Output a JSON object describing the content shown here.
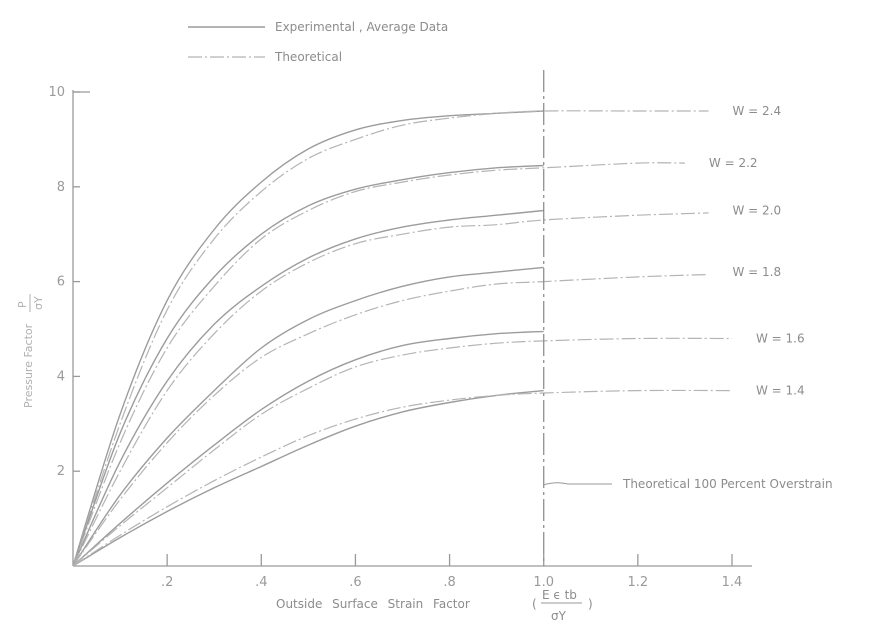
{
  "legend": {
    "experimental_label": "Experimental , Average Data",
    "theoretical_label": "Theoretical"
  },
  "annotation": {
    "overstrain_label": "Theoretical 100 Percent Overstrain"
  },
  "axes": {
    "xlabel": "Outside Surface Strain Factor",
    "xlabel_fraction_num": "E ϵ tb",
    "xlabel_fraction_den": "σY",
    "ylabel": "Pressure Factor",
    "ylabel_fraction_num": "P",
    "ylabel_fraction_den": "σY"
  },
  "chart_data": {
    "type": "line",
    "title": "",
    "xlabel": "Outside Surface Strain Factor",
    "ylabel": "Pressure Factor",
    "xlim": [
      0,
      1.4
    ],
    "ylim": [
      0,
      10
    ],
    "x_ticks": [
      ".2",
      ".4",
      ".6",
      ".8",
      "1.0",
      "1.2",
      "1.4"
    ],
    "y_ticks": [
      "2",
      "4",
      "6",
      "8",
      "10"
    ],
    "vertical_line_x": 1.0,
    "series": [
      {
        "label": "W = 2.4",
        "asymptote": 9.6,
        "experimental": {
          "x": [
            0,
            0.1,
            0.2,
            0.3,
            0.4,
            0.5,
            0.6,
            0.7,
            0.8,
            0.9,
            1.0
          ],
          "y": [
            0,
            3.2,
            5.6,
            7.1,
            8.1,
            8.8,
            9.2,
            9.4,
            9.5,
            9.55,
            9.6
          ]
        },
        "theoretical": {
          "x": [
            0,
            0.1,
            0.2,
            0.3,
            0.4,
            0.5,
            0.6,
            0.7,
            0.8,
            0.9,
            1.0,
            1.2,
            1.35
          ],
          "y": [
            0,
            3.0,
            5.4,
            6.9,
            7.9,
            8.6,
            9.0,
            9.3,
            9.45,
            9.55,
            9.6,
            9.6,
            9.6
          ]
        }
      },
      {
        "label": "W = 2.2",
        "asymptote": 8.5,
        "experimental": {
          "x": [
            0,
            0.1,
            0.2,
            0.3,
            0.4,
            0.5,
            0.6,
            0.7,
            0.8,
            0.9,
            1.0
          ],
          "y": [
            0,
            2.8,
            4.8,
            6.1,
            7.0,
            7.6,
            7.95,
            8.15,
            8.3,
            8.4,
            8.45
          ]
        },
        "theoretical": {
          "x": [
            0,
            0.1,
            0.2,
            0.3,
            0.4,
            0.5,
            0.6,
            0.7,
            0.8,
            0.9,
            1.0,
            1.2,
            1.3
          ],
          "y": [
            0,
            2.6,
            4.6,
            5.9,
            6.9,
            7.5,
            7.9,
            8.1,
            8.25,
            8.35,
            8.4,
            8.5,
            8.5
          ]
        }
      },
      {
        "label": "W = 2.0",
        "asymptote": 7.5,
        "experimental": {
          "x": [
            0,
            0.1,
            0.2,
            0.3,
            0.4,
            0.5,
            0.6,
            0.7,
            0.8,
            0.9,
            1.0
          ],
          "y": [
            0,
            2.2,
            3.9,
            5.1,
            5.9,
            6.5,
            6.9,
            7.15,
            7.3,
            7.4,
            7.5
          ]
        },
        "theoretical": {
          "x": [
            0,
            0.1,
            0.2,
            0.3,
            0.4,
            0.5,
            0.6,
            0.7,
            0.8,
            0.9,
            1.0,
            1.2,
            1.35
          ],
          "y": [
            0,
            2.0,
            3.7,
            4.9,
            5.8,
            6.4,
            6.8,
            7.0,
            7.15,
            7.2,
            7.3,
            7.4,
            7.45
          ]
        }
      },
      {
        "label": "W = 1.8",
        "asymptote": 6.2,
        "experimental": {
          "x": [
            0,
            0.1,
            0.2,
            0.3,
            0.4,
            0.5,
            0.6,
            0.7,
            0.8,
            0.9,
            1.0
          ],
          "y": [
            0,
            1.5,
            2.7,
            3.7,
            4.6,
            5.2,
            5.6,
            5.9,
            6.1,
            6.2,
            6.3
          ]
        },
        "theoretical": {
          "x": [
            0,
            0.1,
            0.2,
            0.3,
            0.4,
            0.5,
            0.6,
            0.7,
            0.8,
            0.9,
            1.0,
            1.2,
            1.35
          ],
          "y": [
            0,
            1.4,
            2.6,
            3.6,
            4.4,
            4.9,
            5.3,
            5.6,
            5.8,
            5.95,
            6.0,
            6.1,
            6.15
          ]
        }
      },
      {
        "label": "W = 1.6",
        "asymptote": 4.8,
        "experimental": {
          "x": [
            0,
            0.1,
            0.2,
            0.3,
            0.4,
            0.5,
            0.6,
            0.7,
            0.8,
            0.9,
            1.0
          ],
          "y": [
            0,
            0.9,
            1.75,
            2.55,
            3.3,
            3.9,
            4.35,
            4.65,
            4.8,
            4.9,
            4.95
          ]
        },
        "theoretical": {
          "x": [
            0,
            0.1,
            0.2,
            0.3,
            0.4,
            0.5,
            0.6,
            0.7,
            0.8,
            0.9,
            1.0,
            1.2,
            1.4
          ],
          "y": [
            0,
            0.85,
            1.65,
            2.45,
            3.2,
            3.75,
            4.2,
            4.45,
            4.6,
            4.7,
            4.75,
            4.8,
            4.8
          ]
        }
      },
      {
        "label": "W = 1.4",
        "asymptote": 3.7,
        "experimental": {
          "x": [
            0,
            0.1,
            0.2,
            0.3,
            0.4,
            0.5,
            0.6,
            0.7,
            0.8,
            0.9,
            1.0
          ],
          "y": [
            0,
            0.6,
            1.15,
            1.65,
            2.1,
            2.55,
            2.95,
            3.25,
            3.45,
            3.6,
            3.7
          ]
        },
        "theoretical": {
          "x": [
            0,
            0.1,
            0.2,
            0.3,
            0.4,
            0.5,
            0.6,
            0.7,
            0.8,
            0.9,
            1.0,
            1.2,
            1.4
          ],
          "y": [
            0,
            0.65,
            1.25,
            1.8,
            2.3,
            2.75,
            3.1,
            3.35,
            3.5,
            3.6,
            3.65,
            3.7,
            3.7
          ]
        }
      }
    ]
  }
}
